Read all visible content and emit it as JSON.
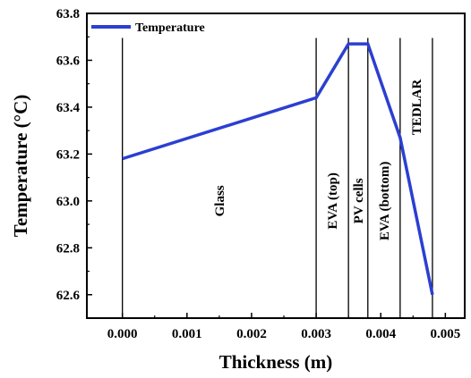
{
  "chart_data": {
    "type": "line",
    "title": "",
    "xlabel": "Thickness (m)",
    "ylabel": "Temperature (°C)",
    "xlim": [
      -0.00055,
      0.0053
    ],
    "ylim": [
      62.5,
      63.8
    ],
    "x_ticks": [
      0.0,
      0.001,
      0.002,
      0.003,
      0.004,
      0.005
    ],
    "x_tick_labels": [
      "0.000",
      "0.001",
      "0.002",
      "0.003",
      "0.004",
      "0.005"
    ],
    "y_ticks": [
      62.6,
      62.8,
      63.0,
      63.2,
      63.4,
      63.6,
      63.8
    ],
    "y_tick_labels": [
      "62.6",
      "62.8",
      "63.0",
      "63.2",
      "63.4",
      "63.6",
      "63.8"
    ],
    "series": [
      {
        "name": "Temperature",
        "color": "#2b3fd1",
        "x": [
          0.0,
          0.003,
          0.0035,
          0.0038,
          0.0043,
          0.0048
        ],
        "y": [
          63.18,
          63.44,
          63.67,
          63.67,
          63.27,
          62.6
        ]
      }
    ],
    "legend": {
      "position": "top-left",
      "entries": [
        "Temperature"
      ]
    },
    "layer_boundaries": [
      0.0,
      0.003,
      0.0035,
      0.0038,
      0.0043,
      0.0048
    ],
    "layers": [
      {
        "label": "Glass",
        "x": 0.0015,
        "y": 63.0
      },
      {
        "label": "EVA (top)",
        "x": 0.00325,
        "y": 63.0
      },
      {
        "label": "PV cells",
        "x": 0.00365,
        "y": 63.0
      },
      {
        "label": "EVA (bottom)",
        "x": 0.00405,
        "y": 63.0
      },
      {
        "label": "TEDLAR",
        "x": 0.00455,
        "y": 63.4
      }
    ],
    "grid": false
  }
}
